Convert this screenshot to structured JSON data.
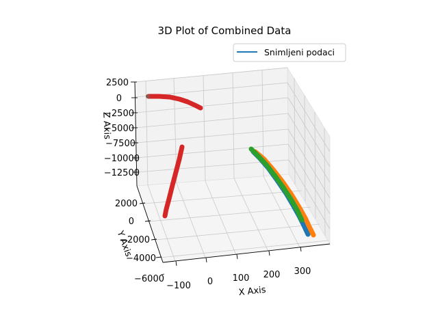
{
  "chart_data": {
    "type": "scatter",
    "title": "3D Plot of Combined Data",
    "xlabel": "X Axis",
    "ylabel": "Y Axis",
    "zlabel": "Z Axis",
    "x_ticks": [
      "−100",
      "0",
      "100",
      "200",
      "300"
    ],
    "y_ticks": [
      "2000",
      "0",
      "−2000",
      "−4000",
      "−6000"
    ],
    "z_ticks": [
      "2500",
      "0",
      "−2500",
      "−5000",
      "−7500",
      "−10000",
      "−12500"
    ],
    "legend": {
      "entries": [
        "Snimljeni podaci"
      ],
      "placement": "upper-right"
    },
    "grid": true,
    "colors": {
      "blue": "#1f77b4",
      "orange": "#ff7f0e",
      "green": "#2ca02c",
      "red": "#d62728"
    }
  }
}
